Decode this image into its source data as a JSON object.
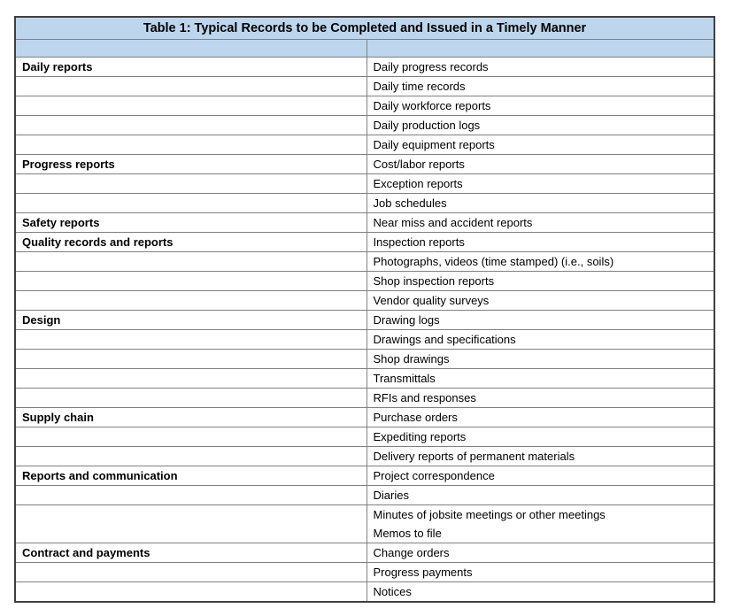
{
  "table": {
    "title": "Table 1: Typical Records to be Completed and Issued in a Timely Manner",
    "column_headers": [
      "",
      ""
    ],
    "colors": {
      "header_bg": "#BDD6EE",
      "border_inner": "#808080",
      "border_outer": "#404040",
      "text_color": "#000000"
    },
    "rows": [
      {
        "category": "Daily reports",
        "items": [
          "Daily progress records"
        ]
      },
      {
        "category": "",
        "items": [
          "Daily time records"
        ]
      },
      {
        "category": "",
        "items": [
          "Daily workforce reports"
        ]
      },
      {
        "category": "",
        "items": [
          "Daily production logs"
        ]
      },
      {
        "category": "",
        "items": [
          "Daily equipment reports"
        ]
      },
      {
        "category": "Progress reports",
        "items": [
          "Cost/labor reports"
        ]
      },
      {
        "category": "",
        "items": [
          "Exception reports"
        ]
      },
      {
        "category": "",
        "items": [
          "Job schedules"
        ]
      },
      {
        "category": "Safety reports",
        "items": [
          "Near miss and accident reports"
        ]
      },
      {
        "category": "Quality records and reports",
        "items": [
          "Inspection reports"
        ]
      },
      {
        "category": "",
        "items": [
          "Photographs, videos (time stamped) (i.e., soils)"
        ]
      },
      {
        "category": "",
        "items": [
          "Shop inspection reports"
        ]
      },
      {
        "category": "",
        "items": [
          "Vendor quality surveys"
        ]
      },
      {
        "category": "Design",
        "items": [
          "Drawing logs"
        ]
      },
      {
        "category": "",
        "items": [
          "Drawings and specifications"
        ]
      },
      {
        "category": "",
        "items": [
          "Shop drawings"
        ]
      },
      {
        "category": "",
        "items": [
          "Transmittals"
        ]
      },
      {
        "category": "",
        "items": [
          "RFIs and responses"
        ]
      },
      {
        "category": "Supply chain",
        "items": [
          "Purchase orders"
        ]
      },
      {
        "category": "",
        "items": [
          "Expediting reports"
        ]
      },
      {
        "category": "",
        "items": [
          "Delivery reports of permanent materials"
        ]
      },
      {
        "category": "Reports and communication",
        "items": [
          "Project correspondence"
        ]
      },
      {
        "category": "",
        "items": [
          "Diaries"
        ]
      },
      {
        "category": "",
        "items": [
          "Minutes of jobsite meetings or other meetings",
          "Memos to file"
        ]
      },
      {
        "category": "Contract and payments",
        "items": [
          "Change orders"
        ]
      },
      {
        "category": "",
        "items": [
          "Progress payments"
        ]
      },
      {
        "category": "",
        "items": [
          "Notices"
        ]
      }
    ]
  }
}
